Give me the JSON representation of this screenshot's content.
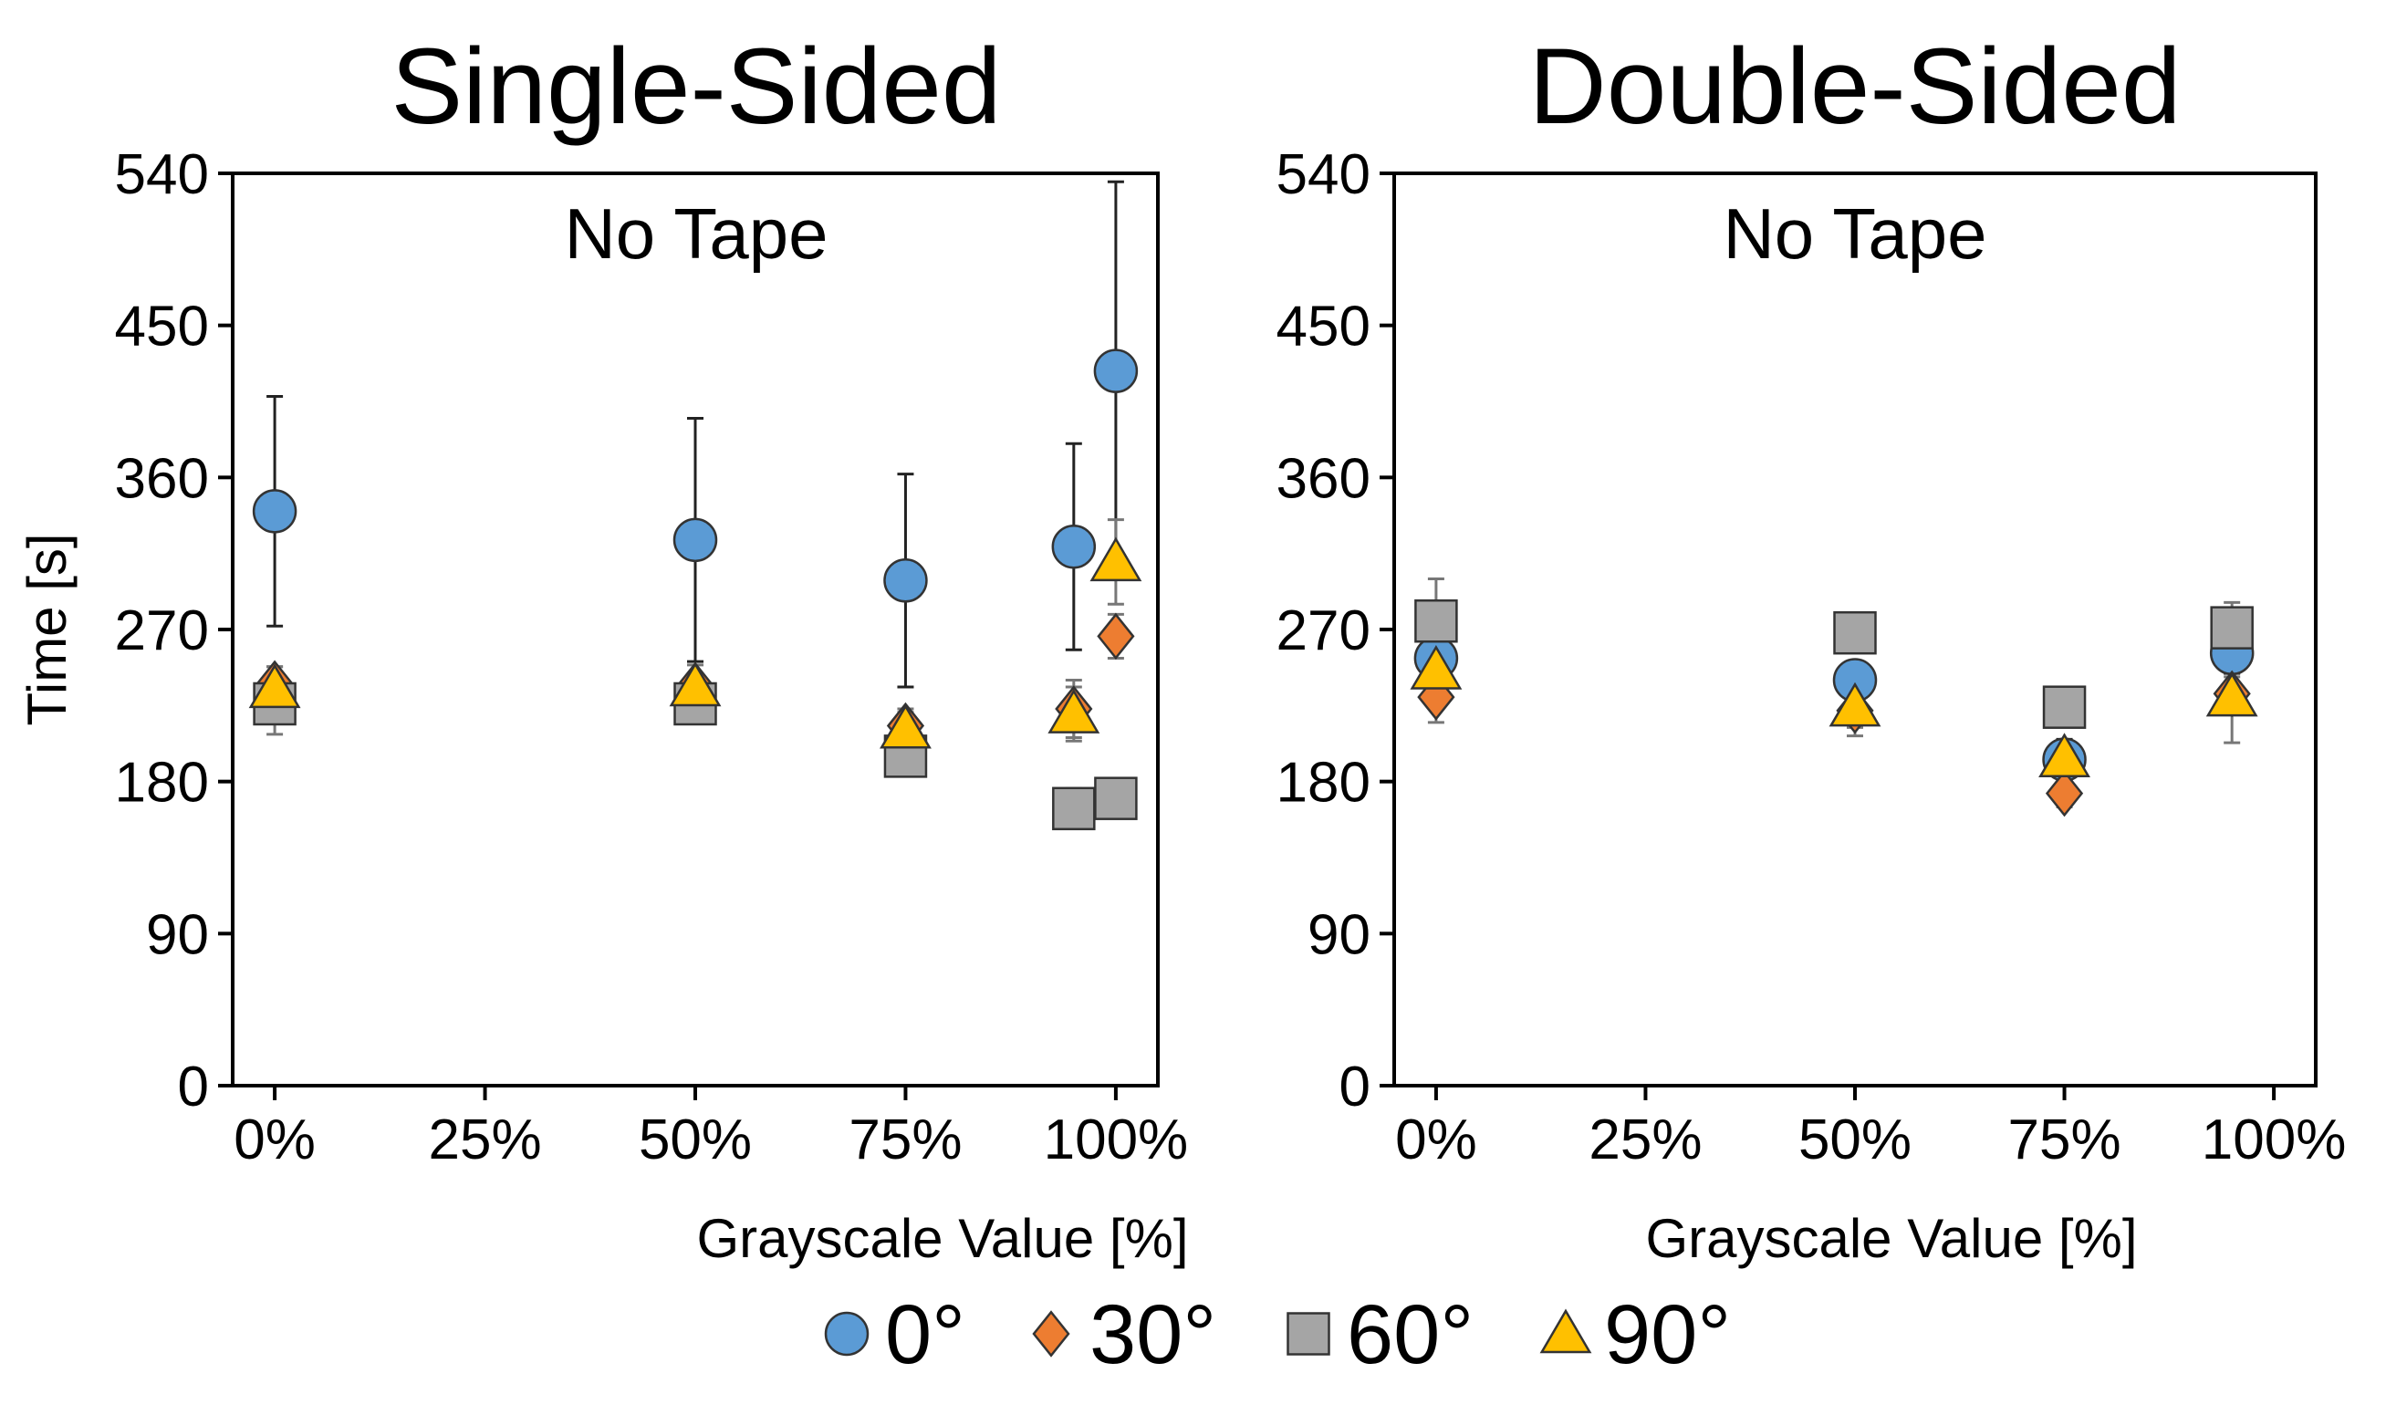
{
  "colors": {
    "0deg": "#5B9BD5",
    "30deg": "#ED7D31",
    "60deg": "#A5A5A5",
    "90deg": "#FFC000"
  },
  "legend": {
    "placement": "bottom-center",
    "items": [
      {
        "label": "0°",
        "marker": "circle",
        "color_key": "0deg"
      },
      {
        "label": "30°",
        "marker": "diamond",
        "color_key": "30deg"
      },
      {
        "label": "60°",
        "marker": "square",
        "color_key": "60deg"
      },
      {
        "label": "90°",
        "marker": "triangle",
        "color_key": "90deg"
      }
    ]
  },
  "chart_data": [
    {
      "type": "scatter",
      "title": "Single-Sided",
      "annotation": "No Tape",
      "xlabel": "Grayscale Value [%]",
      "ylabel": "Time [s]",
      "xlim": [
        -5,
        105
      ],
      "ylim": [
        0,
        540
      ],
      "xticks": [
        0,
        25,
        50,
        75,
        100
      ],
      "xtick_labels": [
        "0%",
        "25%",
        "50%",
        "75%",
        "100%"
      ],
      "yticks": [
        0,
        90,
        180,
        270,
        360,
        450,
        540
      ],
      "ytick_labels": [
        "0",
        "90",
        "180",
        "270",
        "360",
        "450",
        "540"
      ],
      "grid": false,
      "series": [
        {
          "name": "0°",
          "marker": "circle",
          "color_key": "0deg",
          "points": [
            {
              "x": 0,
              "y": 340,
              "err": 68
            },
            {
              "x": 50,
              "y": 323,
              "err": 72
            },
            {
              "x": 75,
              "y": 299,
              "err": 63
            },
            {
              "x": 95,
              "y": 319,
              "err": 61
            },
            {
              "x": 100,
              "y": 423,
              "err": 112
            }
          ]
        },
        {
          "name": "30°",
          "marker": "diamond",
          "color_key": "30deg",
          "points": [
            {
              "x": 0,
              "y": 238,
              "err": 10
            },
            {
              "x": 50,
              "y": 237,
              "err": 12
            },
            {
              "x": 75,
              "y": 213,
              "err": 10
            },
            {
              "x": 95,
              "y": 223,
              "err": 17
            },
            {
              "x": 100,
              "y": 266,
              "err": 13
            }
          ]
        },
        {
          "name": "60°",
          "marker": "square",
          "color_key": "60deg",
          "points": [
            {
              "x": 0,
              "y": 226,
              "err": 18
            },
            {
              "x": 50,
              "y": 226,
              "err": 6
            },
            {
              "x": 75,
              "y": 195,
              "err": 4
            },
            {
              "x": 95,
              "y": 164,
              "err": 12
            },
            {
              "x": 100,
              "y": 170,
              "err": 10
            }
          ]
        },
        {
          "name": "90°",
          "marker": "triangle",
          "color_key": "90deg",
          "points": [
            {
              "x": 0,
              "y": 235,
              "err": 13
            },
            {
              "x": 50,
              "y": 236,
              "err": 8
            },
            {
              "x": 75,
              "y": 211,
              "err": 10
            },
            {
              "x": 95,
              "y": 220,
              "err": 16
            },
            {
              "x": 100,
              "y": 310,
              "err": 25
            }
          ]
        }
      ]
    },
    {
      "type": "scatter",
      "title": "Double-Sided",
      "annotation": "No Tape",
      "xlabel": "Grayscale Value [%]",
      "ylabel": "",
      "xlim": [
        -5,
        105
      ],
      "ylim": [
        0,
        540
      ],
      "xticks": [
        0,
        25,
        50,
        75,
        100
      ],
      "xtick_labels": [
        "0%",
        "25%",
        "50%",
        "75%",
        "100%"
      ],
      "yticks": [
        0,
        90,
        180,
        270,
        360,
        450,
        540
      ],
      "ytick_labels": [
        "0",
        "90",
        "180",
        "270",
        "360",
        "450",
        "540"
      ],
      "grid": false,
      "series": [
        {
          "name": "0°",
          "marker": "circle",
          "color_key": "0deg",
          "points": [
            {
              "x": 0,
              "y": 253,
              "err": 20
            },
            {
              "x": 50,
              "y": 240,
              "err": 8
            },
            {
              "x": 75,
              "y": 193,
              "err": 12
            },
            {
              "x": 95,
              "y": 256,
              "err": 12
            }
          ]
        },
        {
          "name": "30°",
          "marker": "diamond",
          "color_key": "30deg",
          "points": [
            {
              "x": 0,
              "y": 230,
              "err": 15
            },
            {
              "x": 50,
              "y": 222,
              "err": 10
            },
            {
              "x": 75,
              "y": 173,
              "err": 8
            },
            {
              "x": 95,
              "y": 232,
              "err": 10
            }
          ]
        },
        {
          "name": "60°",
          "marker": "square",
          "color_key": "60deg",
          "points": [
            {
              "x": 0,
              "y": 275,
              "err": 25
            },
            {
              "x": 50,
              "y": 268,
              "err": 8
            },
            {
              "x": 75,
              "y": 224,
              "err": 6
            },
            {
              "x": 95,
              "y": 271,
              "err": 15
            }
          ]
        },
        {
          "name": "90°",
          "marker": "triangle",
          "color_key": "90deg",
          "points": [
            {
              "x": 0,
              "y": 246,
              "err": 8
            },
            {
              "x": 50,
              "y": 224,
              "err": 17
            },
            {
              "x": 75,
              "y": 194,
              "err": 8
            },
            {
              "x": 95,
              "y": 230,
              "err": 27
            }
          ]
        }
      ]
    }
  ]
}
